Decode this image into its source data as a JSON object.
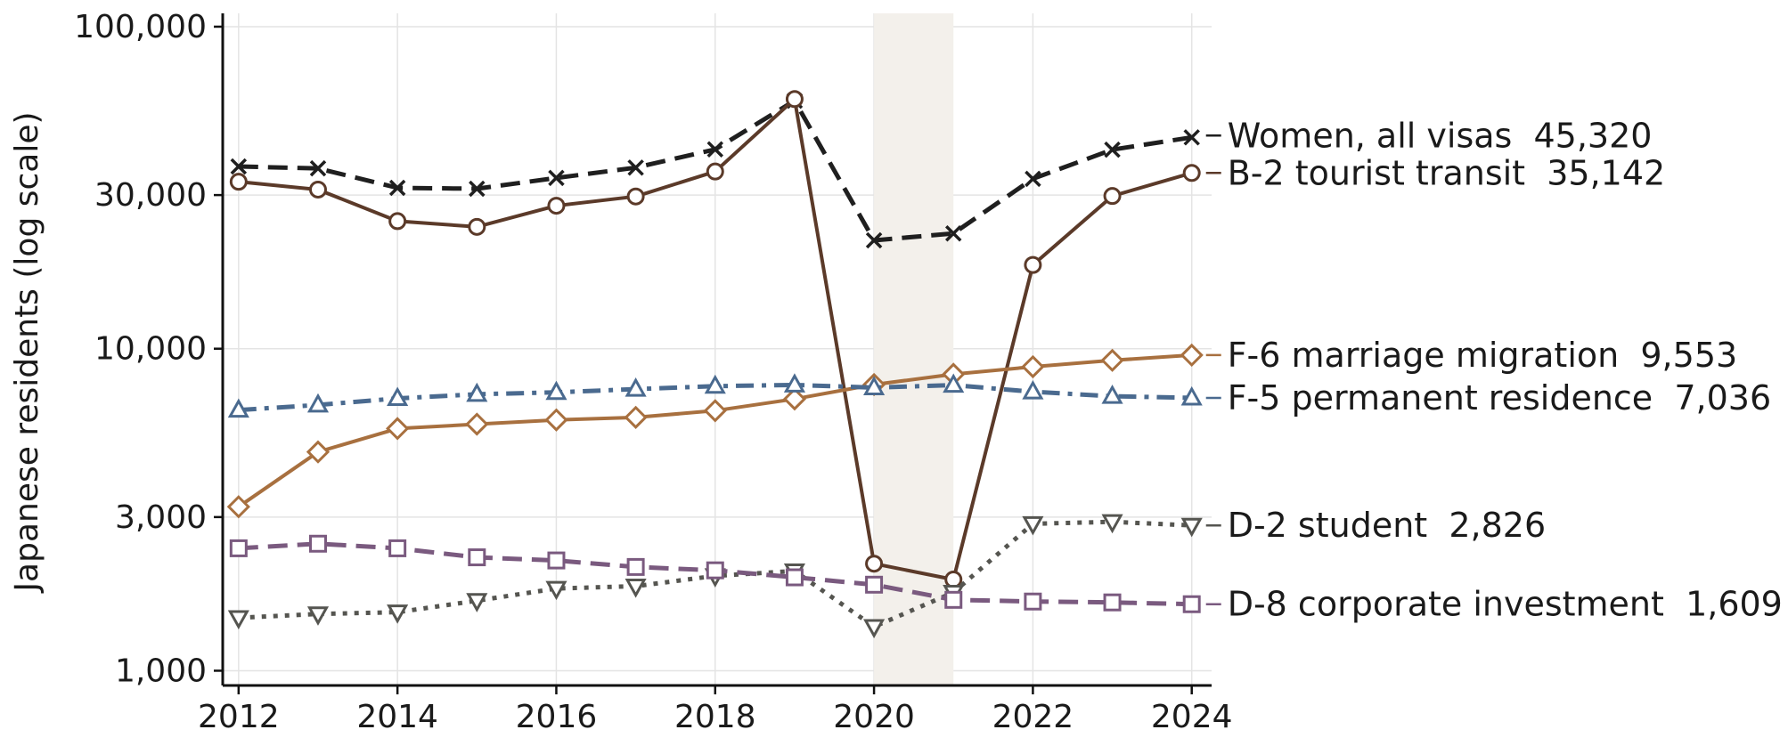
{
  "chart_data": {
    "type": "line",
    "title": "",
    "xlabel": "",
    "ylabel": "Japanese residents (log scale)",
    "yscale": "log",
    "ylim": [
      900,
      110000
    ],
    "xlim": [
      2011.8,
      2024.25
    ],
    "x": [
      2012,
      2013,
      2014,
      2015,
      2016,
      2017,
      2018,
      2019,
      2020,
      2021,
      2022,
      2023,
      2024
    ],
    "xticks": [
      2012,
      2014,
      2016,
      2018,
      2020,
      2022,
      2024
    ],
    "xtick_labels": [
      "2012",
      "2014",
      "2016",
      "2018",
      "2020",
      "2022",
      "2024"
    ],
    "yticks": [
      1000,
      3000,
      10000,
      30000,
      100000
    ],
    "ytick_labels": [
      "1,000",
      "3,000",
      "10,000",
      "30,000",
      "100,000"
    ],
    "grid": true,
    "shaded_span": [
      2020,
      2021
    ],
    "series": [
      {
        "name": "Women, all visas",
        "value_label": "45,320",
        "color": "#1f1f1f",
        "marker": "x",
        "dash": "dashed",
        "values": [
          36800,
          36300,
          31600,
          31400,
          33900,
          36500,
          41600,
          58900,
          21700,
          22800,
          33700,
          41500,
          45320
        ]
      },
      {
        "name": "B-2 tourist transit",
        "value_label": "35,142",
        "color": "#5b3a29",
        "marker": "circle",
        "dash": "solid",
        "values": [
          33000,
          31200,
          24900,
          23900,
          27800,
          29700,
          35500,
          59600,
          2150,
          1920,
          18200,
          29800,
          35142
        ]
      },
      {
        "name": "F-6 marriage migration",
        "value_label": "9,553",
        "color": "#a8703f",
        "marker": "diamond",
        "dash": "solid",
        "values": [
          3230,
          4780,
          5650,
          5830,
          6010,
          6120,
          6420,
          6980,
          7740,
          8330,
          8790,
          9200,
          9553
        ]
      },
      {
        "name": "F-5 permanent residence",
        "value_label": "7,036",
        "color": "#4a6a8f",
        "marker": "triangle-up",
        "dash": "dashdot",
        "values": [
          6450,
          6690,
          7010,
          7220,
          7320,
          7490,
          7650,
          7720,
          7570,
          7710,
          7350,
          7120,
          7036
        ]
      },
      {
        "name": "D-2 student",
        "value_label": "2,826",
        "color": "#555550",
        "marker": "triangle-down",
        "dash": "dotted",
        "values": [
          1460,
          1500,
          1520,
          1650,
          1800,
          1830,
          1970,
          2040,
          1370,
          1750,
          2860,
          2900,
          2826
        ]
      },
      {
        "name": "D-8 corporate investment",
        "value_label": "1,609",
        "color": "#7a5a7f",
        "marker": "square",
        "dash": "dashed",
        "values": [
          2400,
          2480,
          2400,
          2250,
          2200,
          2100,
          2050,
          1950,
          1850,
          1660,
          1640,
          1630,
          1609
        ]
      }
    ]
  }
}
